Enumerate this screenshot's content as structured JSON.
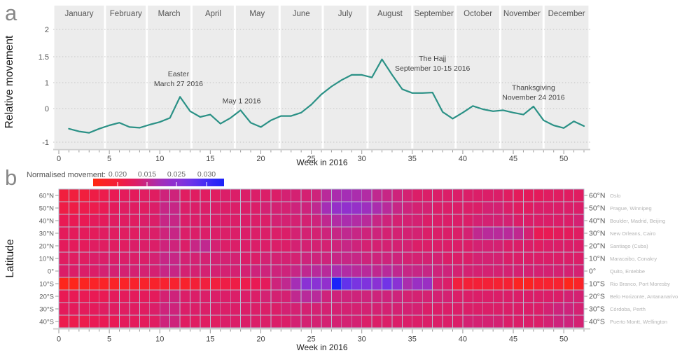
{
  "panels": {
    "a_label": "a",
    "b_label": "b"
  },
  "chart_data": [
    {
      "type": "line",
      "xlabel": "Week in 2016",
      "ylabel": "Relative movement",
      "months": [
        "January",
        "February",
        "March",
        "April",
        "May",
        "June",
        "July",
        "August",
        "September",
        "October",
        "November",
        "December"
      ],
      "month_boundaries_weeks": [
        -0.55,
        4.57,
        8.71,
        13.14,
        17.43,
        21.86,
        26.14,
        30.57,
        35.0,
        39.29,
        43.71,
        48.0,
        52.55
      ],
      "x_ticks": [
        0,
        5,
        10,
        15,
        20,
        25,
        30,
        35,
        40,
        45,
        50
      ],
      "y_ticks": [
        2,
        1.5,
        1,
        0,
        -1
      ],
      "line_color": "#2b9186",
      "weeks": [
        1,
        2,
        3,
        4,
        5,
        6,
        7,
        8,
        9,
        10,
        11,
        12,
        13,
        14,
        15,
        16,
        17,
        18,
        19,
        20,
        21,
        22,
        23,
        24,
        25,
        26,
        27,
        28,
        29,
        30,
        31,
        32,
        33,
        34,
        35,
        36,
        37,
        38,
        39,
        40,
        41,
        42,
        43,
        44,
        45,
        46,
        47,
        48,
        49,
        50,
        51,
        52
      ],
      "values": [
        -0.6,
        -0.68,
        -0.72,
        -0.6,
        -0.5,
        -0.42,
        -0.55,
        -0.57,
        -0.48,
        -0.4,
        -0.28,
        0.45,
        -0.08,
        -0.25,
        -0.18,
        -0.45,
        -0.28,
        -0.05,
        -0.42,
        -0.55,
        -0.35,
        -0.22,
        -0.22,
        -0.12,
        0.15,
        0.55,
        0.85,
        1.05,
        1.15,
        1.15,
        1.1,
        1.45,
        1.15,
        0.75,
        0.6,
        0.6,
        0.62,
        -0.1,
        -0.3,
        -0.12,
        0.1,
        -0.02,
        -0.08,
        -0.05,
        -0.12,
        -0.18,
        0.08,
        -0.35,
        -0.5,
        -0.58,
        -0.38,
        -0.52
      ],
      "annotations": [
        {
          "lines": [
            "Easter",
            "March 27 2016"
          ],
          "week": 11.85,
          "value": 1.12
        },
        {
          "lines": [
            "May 1 2016"
          ],
          "week": 18.1,
          "value": 0.2
        },
        {
          "lines": [
            "The Hajj",
            "September 10-15 2016"
          ],
          "week": 37.0,
          "value": 1.42
        },
        {
          "lines": [
            "Thanksgiving",
            "November 24 2016"
          ],
          "week": 47.0,
          "value": 0.72
        }
      ]
    },
    {
      "type": "heatmap",
      "legend_title": "Normalised movement:",
      "legend_tick_labels": [
        "0.020",
        "0.015",
        "0.025",
        "0.030"
      ],
      "xlabel": "Week in 2016",
      "ylabel": "Latitude",
      "x_ticks": [
        0,
        5,
        10,
        15,
        20,
        25,
        30,
        35,
        40,
        45,
        50
      ],
      "value_range": [
        0.0115,
        0.034
      ],
      "rows": [
        {
          "latitude": "60°N",
          "cities": "Oslo",
          "values": [
            0.016,
            0.016,
            0.016,
            0.0165,
            0.017,
            0.0175,
            0.018,
            0.018,
            0.0185,
            0.0185,
            0.02,
            0.02,
            0.0185,
            0.0185,
            0.0185,
            0.0185,
            0.019,
            0.019,
            0.019,
            0.019,
            0.019,
            0.019,
            0.0195,
            0.0195,
            0.0195,
            0.02,
            0.0215,
            0.0225,
            0.023,
            0.0225,
            0.022,
            0.021,
            0.0205,
            0.02,
            0.0195,
            0.019,
            0.019,
            0.019,
            0.019,
            0.019,
            0.019,
            0.019,
            0.019,
            0.019,
            0.0185,
            0.018,
            0.018,
            0.018,
            0.0185,
            0.0185,
            0.0185,
            0.0185
          ]
        },
        {
          "latitude": "50°N",
          "cities": "Prague, Winnipeg",
          "values": [
            0.0165,
            0.0165,
            0.017,
            0.017,
            0.0175,
            0.018,
            0.0185,
            0.0185,
            0.0185,
            0.019,
            0.0205,
            0.0205,
            0.019,
            0.019,
            0.019,
            0.019,
            0.019,
            0.019,
            0.019,
            0.019,
            0.0195,
            0.0195,
            0.0195,
            0.02,
            0.02,
            0.021,
            0.023,
            0.0245,
            0.025,
            0.0245,
            0.0235,
            0.0225,
            0.0215,
            0.0205,
            0.02,
            0.0195,
            0.0195,
            0.019,
            0.019,
            0.019,
            0.019,
            0.019,
            0.0195,
            0.0195,
            0.019,
            0.0185,
            0.0185,
            0.019,
            0.019,
            0.019,
            0.019,
            0.019
          ]
        },
        {
          "latitude": "40°N",
          "cities": "Boulder, Madrid, Beijing",
          "values": [
            0.0175,
            0.0175,
            0.0175,
            0.018,
            0.018,
            0.0185,
            0.0185,
            0.0185,
            0.019,
            0.019,
            0.0205,
            0.0205,
            0.019,
            0.019,
            0.019,
            0.019,
            0.019,
            0.019,
            0.019,
            0.019,
            0.019,
            0.0195,
            0.0195,
            0.0195,
            0.0195,
            0.02,
            0.021,
            0.022,
            0.0225,
            0.022,
            0.0215,
            0.0205,
            0.02,
            0.0195,
            0.0195,
            0.0195,
            0.019,
            0.019,
            0.019,
            0.019,
            0.019,
            0.0195,
            0.0195,
            0.0195,
            0.0195,
            0.019,
            0.019,
            0.019,
            0.019,
            0.019,
            0.019,
            0.0195
          ]
        },
        {
          "latitude": "30°N",
          "cities": "New Orleans, Cairo",
          "values": [
            0.018,
            0.018,
            0.018,
            0.018,
            0.0185,
            0.0185,
            0.0185,
            0.0185,
            0.019,
            0.019,
            0.02,
            0.0205,
            0.019,
            0.019,
            0.019,
            0.019,
            0.019,
            0.019,
            0.019,
            0.019,
            0.019,
            0.019,
            0.019,
            0.0195,
            0.0195,
            0.0195,
            0.02,
            0.0205,
            0.021,
            0.0205,
            0.02,
            0.02,
            0.0195,
            0.0195,
            0.0195,
            0.0195,
            0.019,
            0.019,
            0.019,
            0.019,
            0.0195,
            0.021,
            0.0215,
            0.0215,
            0.0215,
            0.021,
            0.0195,
            0.0175,
            0.0175,
            0.018,
            0.018,
            0.0185
          ]
        },
        {
          "latitude": "20°N",
          "cities": "Santiago (Cuba)",
          "values": [
            0.018,
            0.018,
            0.018,
            0.0185,
            0.0185,
            0.0185,
            0.0185,
            0.019,
            0.019,
            0.019,
            0.02,
            0.02,
            0.019,
            0.0205,
            0.021,
            0.0195,
            0.019,
            0.019,
            0.019,
            0.019,
            0.019,
            0.019,
            0.019,
            0.0195,
            0.0195,
            0.0195,
            0.0195,
            0.02,
            0.0205,
            0.02,
            0.0195,
            0.0195,
            0.0195,
            0.0195,
            0.0195,
            0.019,
            0.019,
            0.019,
            0.019,
            0.019,
            0.019,
            0.0195,
            0.0195,
            0.0195,
            0.019,
            0.019,
            0.019,
            0.0185,
            0.019,
            0.019,
            0.019,
            0.019
          ]
        },
        {
          "latitude": "10°N",
          "cities": "Maracaibo, Conakry",
          "values": [
            0.0185,
            0.0185,
            0.0185,
            0.019,
            0.019,
            0.019,
            0.019,
            0.019,
            0.019,
            0.0195,
            0.0205,
            0.0205,
            0.0195,
            0.0195,
            0.0195,
            0.0195,
            0.0195,
            0.0195,
            0.019,
            0.019,
            0.0195,
            0.0195,
            0.0195,
            0.0195,
            0.02,
            0.02,
            0.02,
            0.0205,
            0.0205,
            0.0205,
            0.02,
            0.02,
            0.02,
            0.02,
            0.0195,
            0.0195,
            0.0195,
            0.0195,
            0.019,
            0.019,
            0.019,
            0.0195,
            0.0195,
            0.0195,
            0.019,
            0.019,
            0.019,
            0.019,
            0.019,
            0.019,
            0.019,
            0.019
          ]
        },
        {
          "latitude": "0°",
          "cities": "Quito, Entebbe",
          "values": [
            0.019,
            0.019,
            0.019,
            0.019,
            0.0195,
            0.0195,
            0.0195,
            0.0195,
            0.0195,
            0.0195,
            0.0205,
            0.0205,
            0.0195,
            0.0195,
            0.0195,
            0.0195,
            0.0195,
            0.0195,
            0.0195,
            0.02,
            0.02,
            0.02,
            0.02,
            0.0205,
            0.021,
            0.0215,
            0.0215,
            0.0225,
            0.022,
            0.0215,
            0.0215,
            0.021,
            0.0215,
            0.021,
            0.0205,
            0.0205,
            0.0205,
            0.02,
            0.02,
            0.0195,
            0.0195,
            0.0195,
            0.0195,
            0.0195,
            0.0195,
            0.0195,
            0.0195,
            0.0195,
            0.0195,
            0.0195,
            0.0195,
            0.0195
          ]
        },
        {
          "latitude": "10°S",
          "cities": "Rio Branco, Port Moresby",
          "values": [
            0.0125,
            0.0125,
            0.013,
            0.0135,
            0.0135,
            0.0135,
            0.0135,
            0.014,
            0.014,
            0.014,
            0.0145,
            0.0145,
            0.014,
            0.0155,
            0.016,
            0.016,
            0.0165,
            0.0165,
            0.017,
            0.0175,
            0.018,
            0.02,
            0.021,
            0.023,
            0.026,
            0.026,
            0.025,
            0.034,
            0.029,
            0.0275,
            0.027,
            0.026,
            0.028,
            0.026,
            0.0225,
            0.024,
            0.024,
            0.0195,
            0.019,
            0.016,
            0.0155,
            0.0155,
            0.0155,
            0.015,
            0.015,
            0.013,
            0.013,
            0.0145,
            0.0145,
            0.0145,
            0.0125,
            0.0135
          ]
        },
        {
          "latitude": "20°S",
          "cities": "Belo Horizonte, Antananarivo",
          "values": [
            0.0175,
            0.0175,
            0.0175,
            0.0175,
            0.0175,
            0.018,
            0.018,
            0.018,
            0.018,
            0.018,
            0.0195,
            0.02,
            0.019,
            0.019,
            0.019,
            0.019,
            0.019,
            0.019,
            0.019,
            0.019,
            0.0195,
            0.0195,
            0.0195,
            0.021,
            0.0215,
            0.0215,
            0.02,
            0.02,
            0.02,
            0.02,
            0.02,
            0.02,
            0.02,
            0.02,
            0.0195,
            0.0195,
            0.0195,
            0.0195,
            0.0195,
            0.019,
            0.019,
            0.019,
            0.019,
            0.019,
            0.019,
            0.019,
            0.019,
            0.019,
            0.019,
            0.019,
            0.0195,
            0.0195
          ]
        },
        {
          "latitude": "30°S",
          "cities": "Córdoba, Perth",
          "values": [
            0.018,
            0.018,
            0.018,
            0.018,
            0.0185,
            0.0185,
            0.0185,
            0.0185,
            0.0185,
            0.019,
            0.02,
            0.02,
            0.019,
            0.019,
            0.019,
            0.019,
            0.019,
            0.019,
            0.019,
            0.019,
            0.019,
            0.019,
            0.0195,
            0.0195,
            0.0195,
            0.0195,
            0.0195,
            0.0195,
            0.0195,
            0.0195,
            0.0195,
            0.0195,
            0.0195,
            0.0195,
            0.0195,
            0.0195,
            0.019,
            0.019,
            0.019,
            0.019,
            0.019,
            0.019,
            0.019,
            0.019,
            0.019,
            0.019,
            0.019,
            0.019,
            0.0195,
            0.02,
            0.02,
            0.0195
          ]
        },
        {
          "latitude": "40°S",
          "cities": "Puerto Montt, Wellington",
          "values": [
            0.017,
            0.017,
            0.017,
            0.0175,
            0.0175,
            0.0175,
            0.018,
            0.018,
            0.018,
            0.0185,
            0.02,
            0.02,
            0.0185,
            0.0185,
            0.0185,
            0.0185,
            0.019,
            0.019,
            0.019,
            0.019,
            0.019,
            0.019,
            0.019,
            0.0195,
            0.0195,
            0.0195,
            0.0195,
            0.0195,
            0.0195,
            0.0195,
            0.019,
            0.019,
            0.019,
            0.019,
            0.019,
            0.019,
            0.019,
            0.019,
            0.019,
            0.019,
            0.0195,
            0.0195,
            0.0195,
            0.0195,
            0.019,
            0.019,
            0.019,
            0.019,
            0.0195,
            0.02,
            0.02,
            0.0195
          ]
        }
      ]
    }
  ]
}
